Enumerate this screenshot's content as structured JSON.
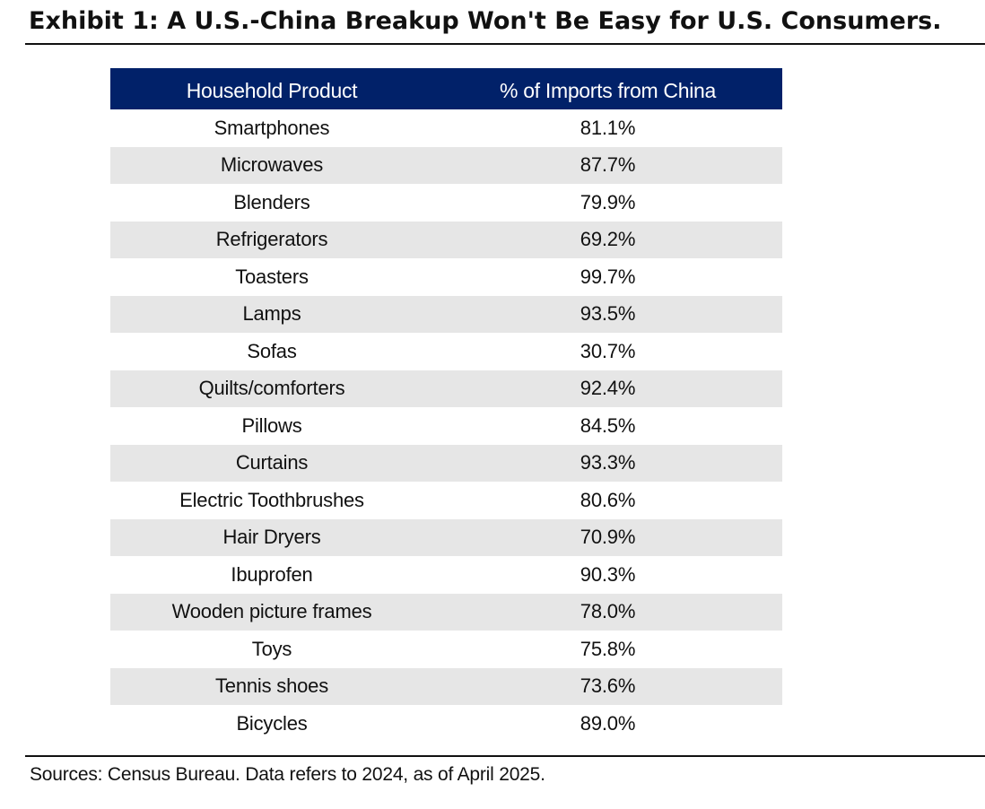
{
  "title": "Exhibit 1: A U.S.-China Breakup Won't Be Easy for U.S. Consumers.",
  "table": {
    "headers": [
      "Household Product",
      "% of Imports from China"
    ],
    "rows": [
      {
        "product": "Smartphones",
        "pct": "81.1%"
      },
      {
        "product": "Microwaves",
        "pct": "87.7%"
      },
      {
        "product": "Blenders",
        "pct": "79.9%"
      },
      {
        "product": "Refrigerators",
        "pct": "69.2%"
      },
      {
        "product": "Toasters",
        "pct": "99.7%"
      },
      {
        "product": "Lamps",
        "pct": "93.5%"
      },
      {
        "product": "Sofas",
        "pct": "30.7%"
      },
      {
        "product": "Quilts/comforters",
        "pct": "92.4%"
      },
      {
        "product": "Pillows",
        "pct": "84.5%"
      },
      {
        "product": "Curtains",
        "pct": "93.3%"
      },
      {
        "product": "Electric Toothbrushes",
        "pct": "80.6%"
      },
      {
        "product": "Hair Dryers",
        "pct": "70.9%"
      },
      {
        "product": "Ibuprofen",
        "pct": "90.3%"
      },
      {
        "product": "Wooden picture frames",
        "pct": "78.0%"
      },
      {
        "product": "Toys",
        "pct": "75.8%"
      },
      {
        "product": "Tennis shoes",
        "pct": "73.6%"
      },
      {
        "product": "Bicycles",
        "pct": "89.0%"
      }
    ]
  },
  "sources": "Sources: Census Bureau. Data refers to 2024, as of April 2025.",
  "colors": {
    "header_bg": "#012169",
    "header_text": "#ffffff",
    "stripe_bg": "#e6e6e6",
    "rule": "#111111"
  },
  "chart_data": {
    "type": "table",
    "title": "Exhibit 1: A U.S.-China Breakup Won't Be Easy for U.S. Consumers.",
    "columns": [
      "Household Product",
      "% of Imports from China"
    ],
    "categories": [
      "Smartphones",
      "Microwaves",
      "Blenders",
      "Refrigerators",
      "Toasters",
      "Lamps",
      "Sofas",
      "Quilts/comforters",
      "Pillows",
      "Curtains",
      "Electric Toothbrushes",
      "Hair Dryers",
      "Ibuprofen",
      "Wooden picture frames",
      "Toys",
      "Tennis shoes",
      "Bicycles"
    ],
    "values": [
      81.1,
      87.7,
      79.9,
      69.2,
      99.7,
      93.5,
      30.7,
      92.4,
      84.5,
      93.3,
      80.6,
      70.9,
      90.3,
      78.0,
      75.8,
      73.6,
      89.0
    ]
  }
}
